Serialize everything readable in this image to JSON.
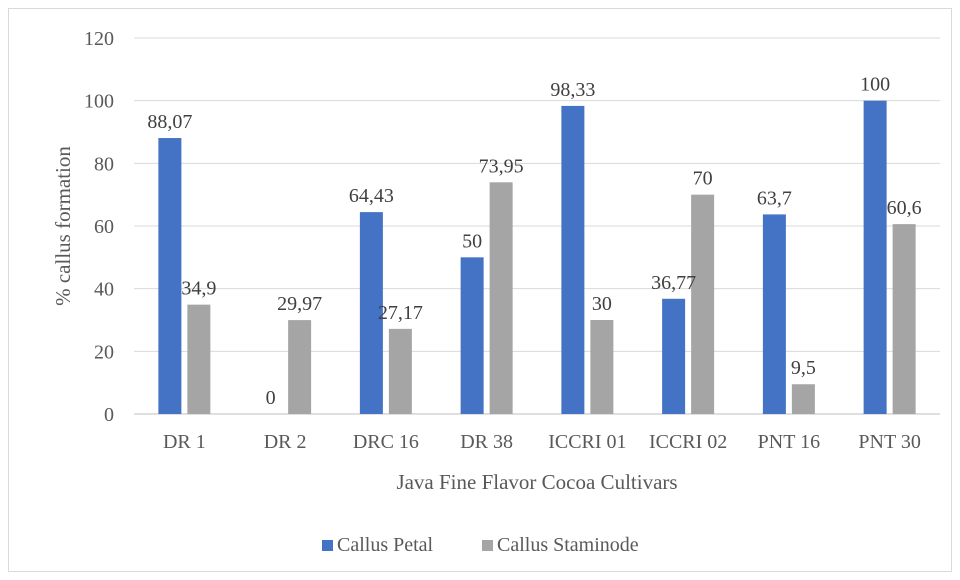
{
  "chart_data": {
    "type": "bar",
    "title": "",
    "xlabel": "Java Fine Flavor Cocoa Cultivars",
    "ylabel": "% callus formation",
    "ylim": [
      0,
      120
    ],
    "yticks": [
      0,
      20,
      40,
      60,
      80,
      100,
      120
    ],
    "ytick_labels": [
      "0",
      "20",
      "40",
      "60",
      "80",
      "100",
      "120"
    ],
    "grid": true,
    "legend_position": "bottom",
    "categories": [
      "DR 1",
      "DR 2",
      "DRC 16",
      "DR 38",
      "ICCRI 01",
      "ICCRI 02",
      "PNT 16",
      "PNT 30"
    ],
    "series": [
      {
        "name": "Callus Petal",
        "color": "#4472c4",
        "values": [
          88.07,
          0,
          64.43,
          50,
          98.33,
          36.77,
          63.7,
          100
        ],
        "labels": [
          "88,07",
          "0",
          "64,43",
          "50",
          "98,33",
          "36,77",
          "63,7",
          "100"
        ]
      },
      {
        "name": "Callus Staminode",
        "color": "#a5a5a5",
        "values": [
          34.9,
          29.97,
          27.17,
          73.95,
          30,
          70,
          9.5,
          60.6
        ],
        "labels": [
          "34,9",
          "29,97",
          "27,17",
          "73,95",
          "30",
          "70",
          "9,5",
          "60,6"
        ]
      }
    ]
  }
}
